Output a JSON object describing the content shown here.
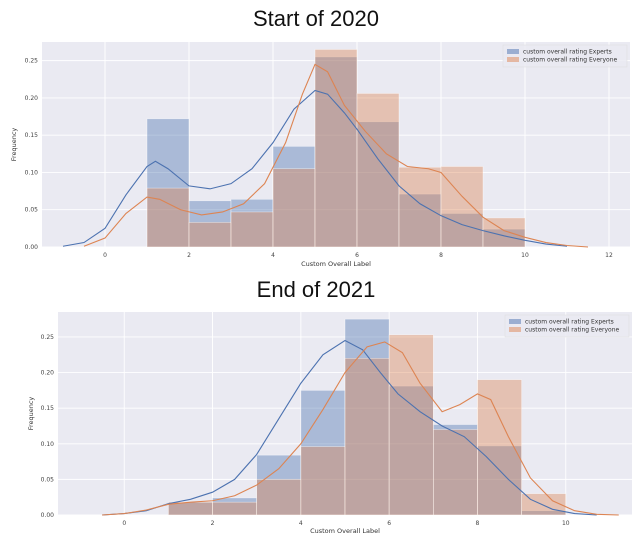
{
  "chart_data": [
    {
      "type": "bar",
      "title": "Start of 2020",
      "xlabel": "Custom Overall Label",
      "ylabel": "Frequency",
      "xlim": [
        -1.5,
        12.5
      ],
      "ylim": [
        0,
        0.275
      ],
      "xticks": [
        "0",
        "2",
        "4",
        "6",
        "8",
        "10",
        "12"
      ],
      "yticks": [
        "0.00",
        "0.05",
        "0.10",
        "0.15",
        "0.20",
        "0.25"
      ],
      "grid": true,
      "legend_position": "top-right",
      "series": [
        {
          "name": "custom overall rating Experts",
          "color": "#4c72b0",
          "bins": [
            {
              "x0": 1,
              "x1": 2,
              "y": 0.172
            },
            {
              "x0": 2,
              "x1": 3,
              "y": 0.062
            },
            {
              "x0": 3,
              "x1": 4,
              "y": 0.064
            },
            {
              "x0": 4,
              "x1": 5,
              "y": 0.135
            },
            {
              "x0": 5,
              "x1": 6,
              "y": 0.255
            },
            {
              "x0": 6,
              "x1": 7,
              "y": 0.168
            },
            {
              "x0": 7,
              "x1": 8,
              "y": 0.071
            },
            {
              "x0": 8,
              "x1": 9,
              "y": 0.045
            },
            {
              "x0": 9,
              "x1": 10,
              "y": 0.024
            }
          ],
          "kde": [
            [
              -1.0,
              0.001
            ],
            [
              -0.5,
              0.006
            ],
            [
              0.0,
              0.025
            ],
            [
              0.5,
              0.07
            ],
            [
              1.0,
              0.108
            ],
            [
              1.2,
              0.115
            ],
            [
              1.5,
              0.105
            ],
            [
              2.0,
              0.082
            ],
            [
              2.5,
              0.078
            ],
            [
              3.0,
              0.085
            ],
            [
              3.5,
              0.105
            ],
            [
              4.0,
              0.14
            ],
            [
              4.5,
              0.185
            ],
            [
              5.0,
              0.21
            ],
            [
              5.3,
              0.205
            ],
            [
              5.7,
              0.18
            ],
            [
              6.0,
              0.158
            ],
            [
              6.5,
              0.118
            ],
            [
              7.0,
              0.082
            ],
            [
              7.5,
              0.058
            ],
            [
              8.0,
              0.042
            ],
            [
              8.5,
              0.03
            ],
            [
              9.0,
              0.022
            ],
            [
              9.5,
              0.015
            ],
            [
              10.0,
              0.009
            ],
            [
              10.5,
              0.004
            ],
            [
              11.0,
              0.001
            ]
          ]
        },
        {
          "name": "custom overall rating Everyone",
          "color": "#dd8452",
          "bins": [
            {
              "x0": 1,
              "x1": 2,
              "y": 0.079
            },
            {
              "x0": 2,
              "x1": 3,
              "y": 0.033
            },
            {
              "x0": 3,
              "x1": 4,
              "y": 0.047
            },
            {
              "x0": 4,
              "x1": 5,
              "y": 0.105
            },
            {
              "x0": 5,
              "x1": 6,
              "y": 0.265
            },
            {
              "x0": 6,
              "x1": 7,
              "y": 0.206
            },
            {
              "x0": 7,
              "x1": 8,
              "y": 0.107
            },
            {
              "x0": 8,
              "x1": 9,
              "y": 0.108
            },
            {
              "x0": 9,
              "x1": 10,
              "y": 0.039
            }
          ],
          "kde": [
            [
              -0.5,
              0.001
            ],
            [
              0.0,
              0.012
            ],
            [
              0.5,
              0.045
            ],
            [
              1.0,
              0.067
            ],
            [
              1.3,
              0.064
            ],
            [
              1.8,
              0.05
            ],
            [
              2.3,
              0.043
            ],
            [
              2.8,
              0.047
            ],
            [
              3.3,
              0.058
            ],
            [
              3.8,
              0.085
            ],
            [
              4.3,
              0.14
            ],
            [
              4.7,
              0.205
            ],
            [
              5.0,
              0.245
            ],
            [
              5.3,
              0.235
            ],
            [
              5.7,
              0.19
            ],
            [
              6.2,
              0.155
            ],
            [
              6.7,
              0.125
            ],
            [
              7.2,
              0.108
            ],
            [
              7.7,
              0.105
            ],
            [
              8.0,
              0.1
            ],
            [
              8.5,
              0.068
            ],
            [
              9.0,
              0.04
            ],
            [
              9.5,
              0.022
            ],
            [
              10.0,
              0.013
            ],
            [
              10.5,
              0.006
            ],
            [
              11.0,
              0.002
            ],
            [
              11.5,
              0.0
            ]
          ]
        }
      ]
    },
    {
      "type": "bar",
      "title": "End of 2021",
      "xlabel": "Custom Overall Label",
      "ylabel": "Frequency",
      "xlim": [
        -1.5,
        11.5
      ],
      "ylim": [
        0,
        0.285
      ],
      "xticks": [
        "0",
        "2",
        "4",
        "6",
        "8",
        "10"
      ],
      "yticks": [
        "0.00",
        "0.05",
        "0.10",
        "0.15",
        "0.20",
        "0.25"
      ],
      "grid": true,
      "legend_position": "top-right",
      "series": [
        {
          "name": "custom overall rating Experts",
          "color": "#4c72b0",
          "bins": [
            {
              "x0": 1,
              "x1": 2,
              "y": 0.018
            },
            {
              "x0": 2,
              "x1": 3,
              "y": 0.024
            },
            {
              "x0": 3,
              "x1": 4,
              "y": 0.084
            },
            {
              "x0": 4,
              "x1": 5,
              "y": 0.175
            },
            {
              "x0": 5,
              "x1": 6,
              "y": 0.275
            },
            {
              "x0": 6,
              "x1": 7,
              "y": 0.181
            },
            {
              "x0": 7,
              "x1": 8,
              "y": 0.127
            },
            {
              "x0": 8,
              "x1": 9,
              "y": 0.097
            },
            {
              "x0": 9,
              "x1": 10,
              "y": 0.006
            }
          ],
          "kde": [
            [
              -0.5,
              0.0
            ],
            [
              0.0,
              0.002
            ],
            [
              0.5,
              0.006
            ],
            [
              1.0,
              0.016
            ],
            [
              1.5,
              0.022
            ],
            [
              2.0,
              0.032
            ],
            [
              2.5,
              0.05
            ],
            [
              3.0,
              0.085
            ],
            [
              3.5,
              0.135
            ],
            [
              4.0,
              0.185
            ],
            [
              4.5,
              0.225
            ],
            [
              5.0,
              0.245
            ],
            [
              5.4,
              0.232
            ],
            [
              5.8,
              0.2
            ],
            [
              6.2,
              0.17
            ],
            [
              6.7,
              0.145
            ],
            [
              7.2,
              0.125
            ],
            [
              7.7,
              0.11
            ],
            [
              8.2,
              0.082
            ],
            [
              8.7,
              0.05
            ],
            [
              9.2,
              0.022
            ],
            [
              9.7,
              0.008
            ],
            [
              10.2,
              0.002
            ],
            [
              10.7,
              0.0
            ]
          ]
        },
        {
          "name": "custom overall rating Everyone",
          "color": "#dd8452",
          "bins": [
            {
              "x0": 1,
              "x1": 2,
              "y": 0.018
            },
            {
              "x0": 2,
              "x1": 3,
              "y": 0.018
            },
            {
              "x0": 3,
              "x1": 4,
              "y": 0.05
            },
            {
              "x0": 4,
              "x1": 5,
              "y": 0.096
            },
            {
              "x0": 5,
              "x1": 6,
              "y": 0.22
            },
            {
              "x0": 6,
              "x1": 7,
              "y": 0.253
            },
            {
              "x0": 7,
              "x1": 8,
              "y": 0.12
            },
            {
              "x0": 8,
              "x1": 9,
              "y": 0.19
            },
            {
              "x0": 9,
              "x1": 10,
              "y": 0.03
            }
          ],
          "kde": [
            [
              -0.5,
              0.0
            ],
            [
              0.0,
              0.002
            ],
            [
              0.5,
              0.007
            ],
            [
              1.0,
              0.015
            ],
            [
              1.5,
              0.018
            ],
            [
              2.0,
              0.02
            ],
            [
              2.5,
              0.027
            ],
            [
              3.0,
              0.042
            ],
            [
              3.5,
              0.065
            ],
            [
              4.0,
              0.1
            ],
            [
              4.5,
              0.148
            ],
            [
              5.0,
              0.2
            ],
            [
              5.5,
              0.236
            ],
            [
              5.9,
              0.243
            ],
            [
              6.3,
              0.228
            ],
            [
              6.7,
              0.185
            ],
            [
              7.2,
              0.145
            ],
            [
              7.6,
              0.155
            ],
            [
              8.0,
              0.17
            ],
            [
              8.3,
              0.162
            ],
            [
              8.7,
              0.11
            ],
            [
              9.2,
              0.052
            ],
            [
              9.7,
              0.02
            ],
            [
              10.2,
              0.006
            ],
            [
              10.7,
              0.001
            ],
            [
              11.2,
              0.0
            ]
          ]
        }
      ]
    }
  ]
}
